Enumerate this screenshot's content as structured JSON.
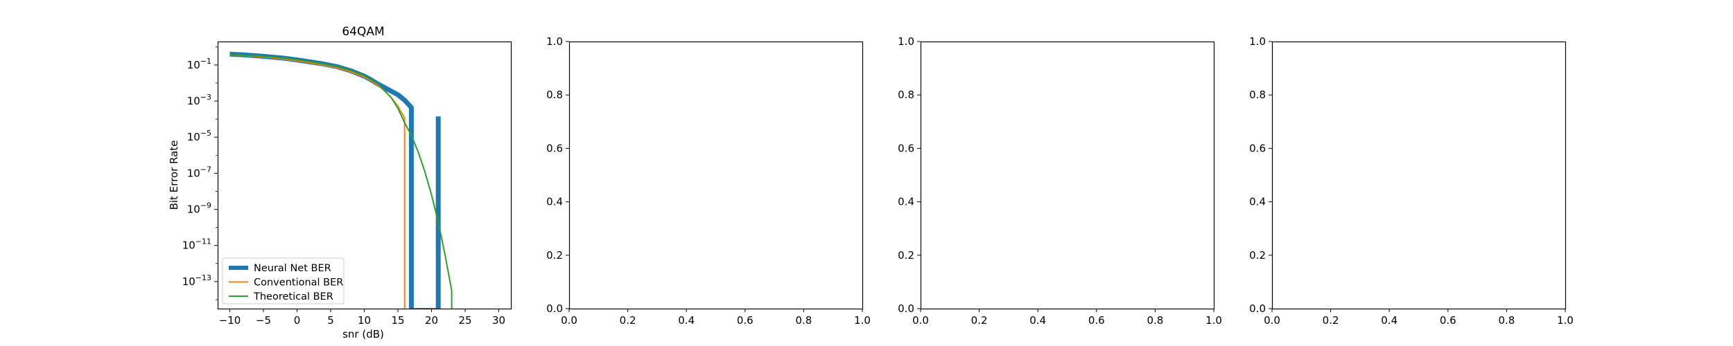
{
  "chart_data": [
    {
      "type": "line",
      "title": "64QAM",
      "xlabel": "snr (dB)",
      "ylabel": "Bit Error Rate",
      "yscale": "log",
      "xlim": [
        -11.8,
        31.8
      ],
      "ylim_log10": [
        -14.5,
        0.3
      ],
      "xticks": [
        {
          "value": -10,
          "label": "−10"
        },
        {
          "value": -5,
          "label": "−5"
        },
        {
          "value": 0,
          "label": "0"
        },
        {
          "value": 5,
          "label": "5"
        },
        {
          "value": 10,
          "label": "10"
        },
        {
          "value": 15,
          "label": "15"
        },
        {
          "value": 20,
          "label": "20"
        },
        {
          "value": 25,
          "label": "25"
        },
        {
          "value": 30,
          "label": "30"
        }
      ],
      "yticks": [
        {
          "exp": -1,
          "base": "10",
          "sup": "−1"
        },
        {
          "exp": -3,
          "base": "10",
          "sup": "−3"
        },
        {
          "exp": -5,
          "base": "10",
          "sup": "−5"
        },
        {
          "exp": -7,
          "base": "10",
          "sup": "−7"
        },
        {
          "exp": -9,
          "base": "10",
          "sup": "−9"
        },
        {
          "exp": -11,
          "base": "10",
          "sup": "−11"
        },
        {
          "exp": -13,
          "base": "10",
          "sup": "−13"
        }
      ],
      "legend_position": "lower-left",
      "series": [
        {
          "name": "Neural Net BER",
          "color": "#1f77b4",
          "x": [
            -10,
            -8,
            -6,
            -4,
            -2,
            0,
            2,
            4,
            6,
            8,
            10,
            11,
            12,
            13,
            14,
            15,
            16,
            17,
            17,
            21,
            21
          ],
          "log10_y": [
            -0.4,
            -0.44,
            -0.49,
            -0.55,
            -0.62,
            -0.72,
            -0.83,
            -0.95,
            -1.1,
            -1.32,
            -1.62,
            -1.82,
            -2.05,
            -2.25,
            -2.45,
            -2.65,
            -2.95,
            -3.35,
            -14.6,
            -14.6,
            -3.85
          ]
        },
        {
          "name": "Conventional BER",
          "color": "#ff7f0e",
          "x": [
            -10,
            -8,
            -6,
            -4,
            -2,
            0,
            2,
            4,
            6,
            8,
            10,
            11,
            12,
            13,
            14,
            15,
            16,
            16
          ],
          "log10_y": [
            -0.44,
            -0.48,
            -0.53,
            -0.59,
            -0.67,
            -0.77,
            -0.88,
            -1.01,
            -1.16,
            -1.38,
            -1.67,
            -1.88,
            -2.13,
            -2.42,
            -2.8,
            -3.28,
            -3.95,
            -14.6
          ]
        },
        {
          "name": "Theoretical BER",
          "color": "#2ca02c",
          "x": [
            -10,
            -8,
            -6,
            -4,
            -2,
            0,
            2,
            4,
            6,
            8,
            10,
            12,
            14,
            15,
            16,
            17,
            18,
            19,
            20,
            21,
            22,
            23,
            23
          ],
          "log10_y": [
            -0.44,
            -0.46,
            -0.5,
            -0.55,
            -0.62,
            -0.71,
            -0.82,
            -0.95,
            -1.1,
            -1.31,
            -1.6,
            -2.05,
            -2.8,
            -3.4,
            -4.2,
            -4.9,
            -5.8,
            -6.9,
            -8.2,
            -9.7,
            -11.5,
            -13.5,
            -14.6
          ]
        }
      ]
    },
    {
      "type": "line",
      "title": "",
      "xlim": [
        0,
        1
      ],
      "ylim": [
        0,
        1
      ],
      "xticks": [
        "0.0",
        "0.2",
        "0.4",
        "0.6",
        "0.8",
        "1.0"
      ],
      "yticks": [
        "0.0",
        "0.2",
        "0.4",
        "0.6",
        "0.8",
        "1.0"
      ],
      "series": []
    },
    {
      "type": "line",
      "title": "",
      "xlim": [
        0,
        1
      ],
      "ylim": [
        0,
        1
      ],
      "xticks": [
        "0.0",
        "0.2",
        "0.4",
        "0.6",
        "0.8",
        "1.0"
      ],
      "yticks": [
        "0.0",
        "0.2",
        "0.4",
        "0.6",
        "0.8",
        "1.0"
      ],
      "series": []
    },
    {
      "type": "line",
      "title": "",
      "xlim": [
        0,
        1
      ],
      "ylim": [
        0,
        1
      ],
      "xticks": [
        "0.0",
        "0.2",
        "0.4",
        "0.6",
        "0.8",
        "1.0"
      ],
      "yticks": [
        "0.0",
        "0.2",
        "0.4",
        "0.6",
        "0.8",
        "1.0"
      ],
      "series": []
    }
  ]
}
